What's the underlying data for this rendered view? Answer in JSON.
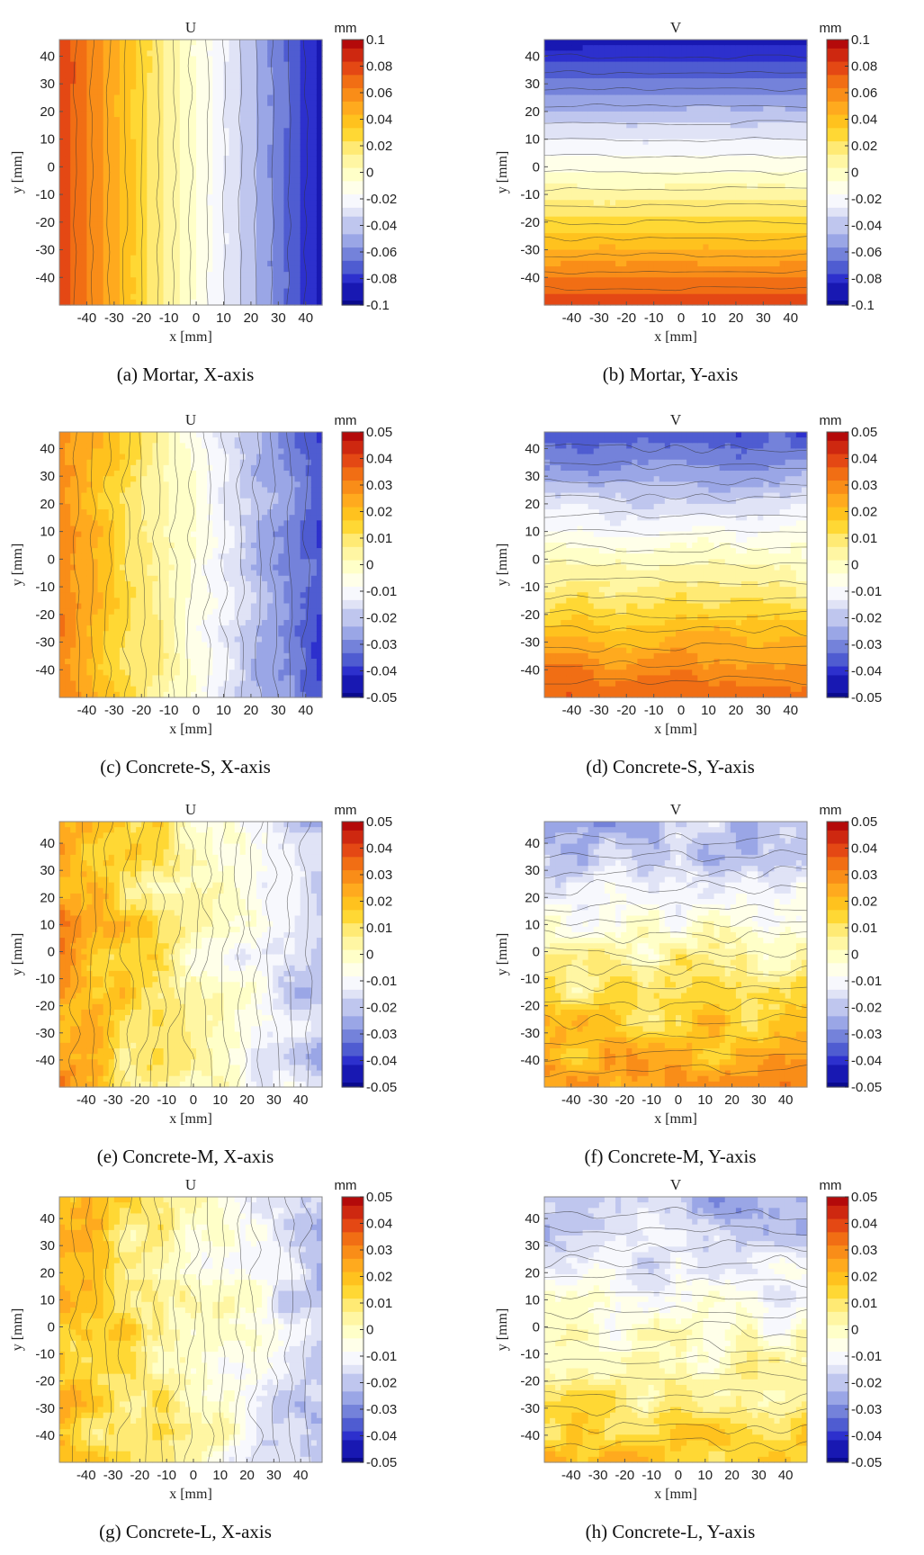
{
  "figure": {
    "colormap": [
      "#0a0a8c",
      "#2222cc",
      "#5a6ad2",
      "#9aa6e6",
      "#d8dcf4",
      "#ffffff",
      "#ffffc8",
      "#fff08a",
      "#ffd21e",
      "#ffaa1e",
      "#f57a14",
      "#e03c14",
      "#b40a0a"
    ],
    "contour_line_color": "#333333"
  },
  "chart_data": [
    {
      "type": "heatmap",
      "title": "U",
      "caption": "(a) Mortar, X-axis",
      "xlabel": "x [mm]",
      "ylabel": "y [mm]",
      "xticks": [
        -40,
        -30,
        -20,
        -10,
        0,
        10,
        20,
        30,
        40
      ],
      "yticks": [
        40,
        30,
        20,
        10,
        0,
        -10,
        -20,
        -30,
        -40
      ],
      "xlim": [
        -50,
        46
      ],
      "ylim": [
        -50,
        46
      ],
      "colorbar": {
        "unit": "mm",
        "ticks": [
          "0.1",
          "0.08",
          "0.06",
          "0.04",
          "0.02",
          "0",
          "-0.02",
          "-0.04",
          "-0.06",
          "-0.08",
          "-0.1"
        ],
        "range": [
          -0.1,
          0.1
        ]
      },
      "field": {
        "direction": "x",
        "from": 0.083,
        "to": -0.088,
        "noise": "low"
      }
    },
    {
      "type": "heatmap",
      "title": "V",
      "caption": "(b) Mortar, Y-axis",
      "xlabel": "x [mm]",
      "ylabel": "y [mm]",
      "xticks": [
        -40,
        -30,
        -20,
        -10,
        0,
        10,
        20,
        30,
        40
      ],
      "yticks": [
        40,
        30,
        20,
        10,
        0,
        -10,
        -20,
        -30,
        -40
      ],
      "xlim": [
        -50,
        46
      ],
      "ylim": [
        -50,
        46
      ],
      "colorbar": {
        "unit": "mm",
        "ticks": [
          "0.1",
          "0.08",
          "0.06",
          "0.04",
          "0.02",
          "0",
          "-0.02",
          "-0.04",
          "-0.06",
          "-0.08",
          "-0.1"
        ],
        "range": [
          -0.1,
          0.1
        ]
      },
      "field": {
        "direction": "y",
        "from": -0.09,
        "to": 0.082,
        "noise": "low"
      }
    },
    {
      "type": "heatmap",
      "title": "U",
      "caption": "(c) Concrete-S, X-axis",
      "xlabel": "x [mm]",
      "ylabel": "y [mm]",
      "xticks": [
        -40,
        -30,
        -20,
        -10,
        0,
        10,
        20,
        30,
        40
      ],
      "yticks": [
        40,
        30,
        20,
        10,
        0,
        -10,
        -20,
        -30,
        -40
      ],
      "xlim": [
        -50,
        46
      ],
      "ylim": [
        -50,
        46
      ],
      "colorbar": {
        "unit": "mm",
        "ticks": [
          "0.05",
          "0.04",
          "0.03",
          "0.02",
          "0.01",
          "0",
          "-0.01",
          "-0.02",
          "-0.03",
          "-0.04",
          "-0.05"
        ],
        "range": [
          -0.05,
          0.05
        ]
      },
      "field": {
        "direction": "x",
        "from": 0.032,
        "to": -0.038,
        "noise": "medium"
      }
    },
    {
      "type": "heatmap",
      "title": "V",
      "caption": "(d) Concrete-S, Y-axis",
      "xlabel": "x [mm]",
      "ylabel": "y [mm]",
      "xticks": [
        -40,
        -30,
        -20,
        -10,
        0,
        10,
        20,
        30,
        40
      ],
      "yticks": [
        40,
        30,
        20,
        10,
        0,
        -10,
        -20,
        -30,
        -40
      ],
      "xlim": [
        -50,
        46
      ],
      "ylim": [
        -50,
        46
      ],
      "colorbar": {
        "unit": "mm",
        "ticks": [
          "0.05",
          "0.04",
          "0.03",
          "0.02",
          "0.01",
          "0",
          "-0.01",
          "-0.02",
          "-0.03",
          "-0.04",
          "-0.05"
        ],
        "range": [
          -0.05,
          0.05
        ]
      },
      "field": {
        "direction": "y",
        "from": -0.036,
        "to": 0.038,
        "noise": "medium"
      }
    },
    {
      "type": "heatmap",
      "title": "U",
      "caption": "(e) Concrete-M, X-axis",
      "xlabel": "x [mm]",
      "ylabel": "y [mm]",
      "xticks": [
        -40,
        -30,
        -20,
        -10,
        0,
        10,
        20,
        30,
        40
      ],
      "yticks": [
        40,
        30,
        20,
        10,
        0,
        -10,
        -20,
        -30,
        -40
      ],
      "xlim": [
        -50,
        48
      ],
      "ylim": [
        -50,
        48
      ],
      "colorbar": {
        "unit": "mm",
        "ticks": [
          "0.05",
          "0.04",
          "0.03",
          "0.02",
          "0.01",
          "0",
          "-0.01",
          "-0.02",
          "-0.03",
          "-0.04",
          "-0.05"
        ],
        "range": [
          -0.05,
          0.05
        ]
      },
      "field": {
        "direction": "x",
        "from": 0.026,
        "to": -0.02,
        "noise": "high"
      }
    },
    {
      "type": "heatmap",
      "title": "V",
      "caption": "(f) Concrete-M, Y-axis",
      "xlabel": "x [mm]",
      "ylabel": "y [mm]",
      "xticks": [
        -40,
        -30,
        -20,
        -10,
        0,
        10,
        20,
        30,
        40
      ],
      "yticks": [
        40,
        30,
        20,
        10,
        0,
        -10,
        -20,
        -30,
        -40
      ],
      "xlim": [
        -50,
        48
      ],
      "ylim": [
        -50,
        48
      ],
      "colorbar": {
        "unit": "mm",
        "ticks": [
          "0.05",
          "0.04",
          "0.03",
          "0.02",
          "0.01",
          "0",
          "-0.01",
          "-0.02",
          "-0.03",
          "-0.04",
          "-0.05"
        ],
        "range": [
          -0.05,
          0.05
        ]
      },
      "field": {
        "direction": "y",
        "from": -0.022,
        "to": 0.028,
        "noise": "high"
      }
    },
    {
      "type": "heatmap",
      "title": "U",
      "caption": "(g) Concrete-L, X-axis",
      "xlabel": "x [mm]",
      "ylabel": "y [mm]",
      "xticks": [
        -40,
        -30,
        -20,
        -10,
        0,
        10,
        20,
        30,
        40
      ],
      "yticks": [
        40,
        30,
        20,
        10,
        0,
        -10,
        -20,
        -30,
        -40
      ],
      "xlim": [
        -50,
        48
      ],
      "ylim": [
        -50,
        48
      ],
      "colorbar": {
        "unit": "mm",
        "ticks": [
          "0.05",
          "0.04",
          "0.03",
          "0.02",
          "0.01",
          "0",
          "-0.01",
          "-0.02",
          "-0.03",
          "-0.04",
          "-0.05"
        ],
        "range": [
          -0.05,
          0.05
        ]
      },
      "field": {
        "direction": "x",
        "from": 0.022,
        "to": -0.02,
        "noise": "high"
      }
    },
    {
      "type": "heatmap",
      "title": "V",
      "caption": "(h) Concrete-L, Y-axis",
      "xlabel": "x [mm]",
      "ylabel": "y [mm]",
      "xticks": [
        -40,
        -30,
        -20,
        -10,
        0,
        10,
        20,
        30,
        40
      ],
      "yticks": [
        40,
        30,
        20,
        10,
        0,
        -10,
        -20,
        -30,
        -40
      ],
      "xlim": [
        -50,
        48
      ],
      "ylim": [
        -50,
        48
      ],
      "colorbar": {
        "unit": "mm",
        "ticks": [
          "0.05",
          "0.04",
          "0.03",
          "0.02",
          "0.01",
          "0",
          "-0.01",
          "-0.02",
          "-0.03",
          "-0.04",
          "-0.05"
        ],
        "range": [
          -0.05,
          0.05
        ]
      },
      "field": {
        "direction": "y",
        "from": -0.022,
        "to": 0.018,
        "noise": "high"
      }
    }
  ]
}
